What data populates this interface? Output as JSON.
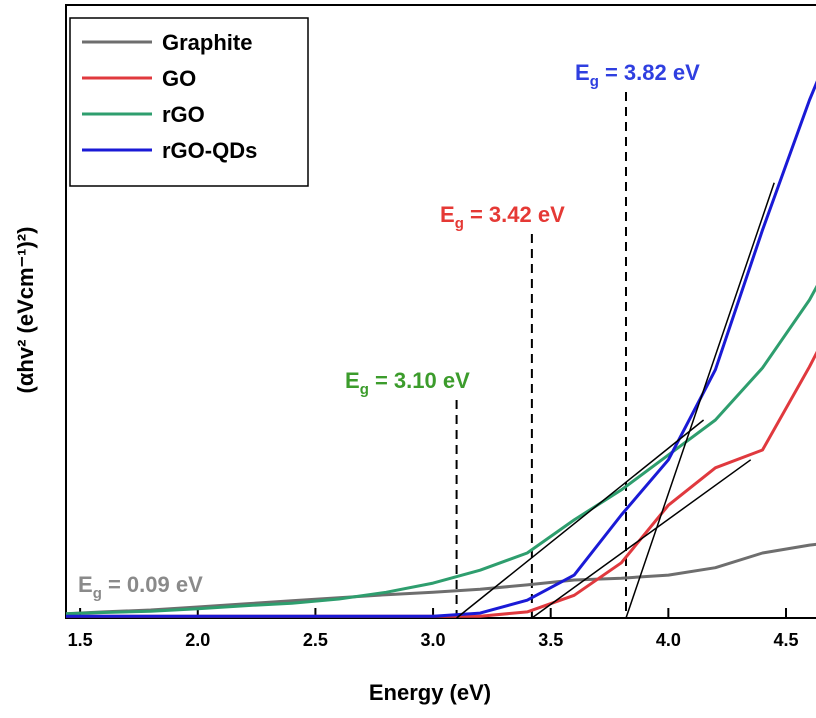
{
  "chart_data": {
    "type": "line",
    "x_label": "Energy (eV)",
    "y_label": "(αhv² (eVcm⁻¹)²)",
    "xlim": [
      1.44,
      4.67
    ],
    "ylim": [
      0,
      100
    ],
    "xticks": [
      1.5,
      {
        "value": 2,
        "label": "2.0"
      },
      2.5,
      {
        "value": 3,
        "label": "3.0"
      },
      3.5,
      {
        "value": 4,
        "label": "4.0"
      },
      4.5
    ],
    "legend": "upper left",
    "x": [
      1.44,
      1.6,
      1.8,
      2.0,
      2.2,
      2.4,
      2.6,
      2.8,
      3.0,
      3.2,
      3.4,
      3.6,
      3.8,
      4.0,
      4.2,
      4.4,
      4.6,
      4.67
    ],
    "series": [
      {
        "name": "Graphite",
        "color": "#6e6e6e",
        "values": [
          0.7,
          1.0,
          1.3,
          1.8,
          2.3,
          2.8,
          3.3,
          3.8,
          4.2,
          4.7,
          5.4,
          6.2,
          6.5,
          7.0,
          8.2,
          10.6,
          11.9,
          12.2
        ]
      },
      {
        "name": "GO",
        "color": "#e0393e",
        "values": [
          0.3,
          0.3,
          0.3,
          0.3,
          0.3,
          0.3,
          0.3,
          0.3,
          0.3,
          0.3,
          1.0,
          3.7,
          9.0,
          18.4,
          24.5,
          27.4,
          41.0,
          46.2
        ]
      },
      {
        "name": "rGO",
        "color": "#2e9e6e",
        "values": [
          0.7,
          0.9,
          1.1,
          1.5,
          2.0,
          2.4,
          3.1,
          4.2,
          5.7,
          7.8,
          10.6,
          16.0,
          20.9,
          26.6,
          32.3,
          40.8,
          51.9,
          56.8
        ]
      },
      {
        "name": "rGO-QDs",
        "color": "#1a1ad6",
        "values": [
          0.3,
          0.3,
          0.3,
          0.3,
          0.3,
          0.3,
          0.3,
          0.3,
          0.3,
          0.8,
          2.9,
          7.0,
          16.8,
          25.8,
          40.5,
          63.3,
          84.5,
          91.0
        ]
      }
    ],
    "fit_lines": [
      {
        "color": "#000000",
        "x": [
          3.1,
          4.15
        ],
        "values": [
          0,
          32.3
        ]
      },
      {
        "color": "#000000",
        "x": [
          3.42,
          4.35
        ],
        "values": [
          0,
          25.8
        ]
      },
      {
        "color": "#000000",
        "x": [
          3.82,
          4.45
        ],
        "values": [
          0,
          71
        ]
      }
    ],
    "annotations": [
      {
        "symbol": "E",
        "subscript": "g",
        "label": " = 3.82 eV",
        "color": "#2f3fe0",
        "x": 3.82
      },
      {
        "symbol": "E",
        "subscript": "g",
        "label": " = 3.42 eV",
        "color": "#e53935",
        "x": 3.42
      },
      {
        "symbol": "E",
        "subscript": "g",
        "label": " = 3.10 eV",
        "color": "#3c9c2c",
        "x": 3.1
      },
      {
        "symbol": "E",
        "subscript": "g",
        "label": " = 0.09 eV",
        "color": "#8a8a8a"
      }
    ]
  }
}
